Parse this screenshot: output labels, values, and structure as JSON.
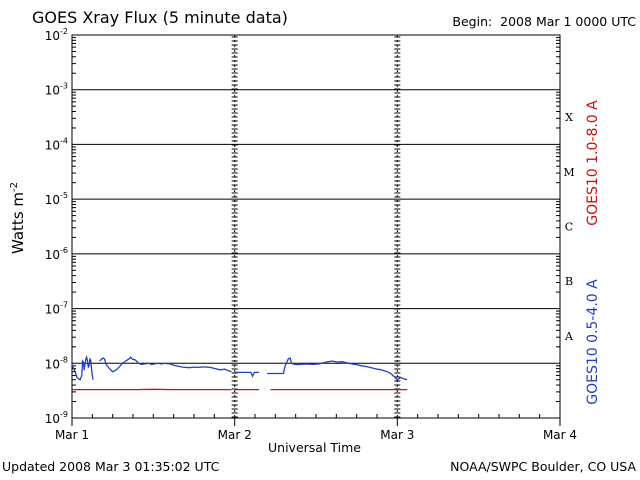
{
  "header": {
    "title": "GOES Xray Flux (5 minute data)",
    "begin_label": "Begin:",
    "begin_value": "2008 Mar 1 0000 UTC"
  },
  "footer": {
    "updated": "Updated 2008 Mar  3 01:35:02 UTC",
    "credit": "NOAA/SWPC Boulder, CO USA"
  },
  "chart_data": {
    "type": "line",
    "title": "GOES Xray Flux (5 minute data)",
    "xlabel": "Universal Time",
    "ylabel_base": "Watts m",
    "ylabel_exp": "-2",
    "y_scale": "log",
    "ylim": [
      1e-09,
      0.01
    ],
    "y_ticks": [
      {
        "base": "10",
        "exp": "-9",
        "value": 1e-09
      },
      {
        "base": "10",
        "exp": "-8",
        "value": 1e-08
      },
      {
        "base": "10",
        "exp": "-7",
        "value": 1e-07
      },
      {
        "base": "10",
        "exp": "-6",
        "value": 1e-06
      },
      {
        "base": "10",
        "exp": "-5",
        "value": 1e-05
      },
      {
        "base": "10",
        "exp": "-4",
        "value": 0.0001
      },
      {
        "base": "10",
        "exp": "-3",
        "value": 0.001
      },
      {
        "base": "10",
        "exp": "-2",
        "value": 0.01
      }
    ],
    "xlim": [
      0,
      3
    ],
    "x_unit": "days since 2008 Mar 1 0000 UTC",
    "x_ticks": [
      {
        "label": "Mar 1",
        "value": 0
      },
      {
        "label": "Mar 2",
        "value": 1
      },
      {
        "label": "Mar 3",
        "value": 2
      },
      {
        "label": "Mar 4",
        "value": 3
      }
    ],
    "flare_classes": [
      {
        "label": "A",
        "value": 3.16e-08
      },
      {
        "label": "B",
        "value": 3.16e-07
      },
      {
        "label": "C",
        "value": 3.16e-06
      },
      {
        "label": "M",
        "value": 3.16e-05
      },
      {
        "label": "X",
        "value": 0.000316
      }
    ],
    "horizontal_grid": [
      1e-08,
      1e-07,
      1e-06,
      1e-05,
      0.0001,
      0.001
    ],
    "series": [
      {
        "name": "GOES10 1.0-8.0 A",
        "color": "#d01010",
        "segments": [
          [
            [
              0.0,
              3.3e-09
            ],
            [
              0.12,
              3.3e-09
            ]
          ],
          [
            [
              0.12,
              3.3e-09
            ],
            [
              0.4,
              3.3e-09
            ],
            [
              0.5,
              3.35e-09
            ],
            [
              0.6,
              3.3e-09
            ],
            [
              0.98,
              3.3e-09
            ]
          ],
          [
            [
              1.0,
              3.3e-09
            ],
            [
              1.15,
              3.3e-09
            ]
          ],
          [
            [
              1.22,
              3.3e-09
            ],
            [
              1.6,
              3.3e-09
            ],
            [
              1.8,
              3.3e-09
            ],
            [
              2.06,
              3.3e-09
            ]
          ]
        ]
      },
      {
        "name": "GOES10 0.5-4.0 A",
        "color": "#2040c0",
        "segments": [
          [
            [
              0.0,
              9.5e-09
            ],
            [
              0.01,
              8e-09
            ],
            [
              0.02,
              7e-09
            ],
            [
              0.03,
              5.5e-09
            ],
            [
              0.04,
              5.2e-09
            ],
            [
              0.05,
              5e-09
            ],
            [
              0.06,
              6e-09
            ],
            [
              0.065,
              1.1e-08
            ],
            [
              0.07,
              1.05e-08
            ],
            [
              0.075,
              7.5e-09
            ],
            [
              0.08,
              9.5e-09
            ],
            [
              0.085,
              1.2e-08
            ],
            [
              0.09,
              1.3e-08
            ],
            [
              0.095,
              1.1e-08
            ],
            [
              0.1,
              8.5e-09
            ],
            [
              0.105,
              9e-09
            ],
            [
              0.11,
              1.2e-08
            ],
            [
              0.115,
              1.15e-08
            ],
            [
              0.12,
              8e-09
            ],
            [
              0.125,
              6e-09
            ],
            [
              0.13,
              5e-09
            ]
          ],
          [
            [
              0.17,
              1.1e-08
            ],
            [
              0.19,
              1.25e-08
            ],
            [
              0.2,
              1.2e-08
            ],
            [
              0.21,
              9.5e-09
            ],
            [
              0.23,
              8e-09
            ],
            [
              0.25,
              7e-09
            ],
            [
              0.27,
              7.5e-09
            ],
            [
              0.29,
              8.5e-09
            ],
            [
              0.31,
              1e-08
            ],
            [
              0.33,
              1.1e-08
            ],
            [
              0.35,
              1.2e-08
            ],
            [
              0.36,
              1.3e-08
            ],
            [
              0.37,
              1.2e-08
            ],
            [
              0.39,
              1.15e-08
            ],
            [
              0.41,
              1e-08
            ],
            [
              0.43,
              9.5e-09
            ],
            [
              0.45,
              9.8e-09
            ],
            [
              0.47,
              1e-08
            ],
            [
              0.49,
              9.5e-09
            ],
            [
              0.51,
              9.8e-09
            ],
            [
              0.53,
              1e-08
            ],
            [
              0.55,
              9.7e-09
            ],
            [
              0.57,
              1e-08
            ],
            [
              0.6,
              9.8e-09
            ],
            [
              0.62,
              9.3e-09
            ],
            [
              0.64,
              9e-09
            ],
            [
              0.68,
              8.5e-09
            ],
            [
              0.72,
              8.3e-09
            ],
            [
              0.75,
              8.5e-09
            ],
            [
              0.78,
              8.4e-09
            ],
            [
              0.81,
              8.6e-09
            ],
            [
              0.85,
              8.4e-09
            ],
            [
              0.88,
              8e-09
            ],
            [
              0.91,
              7.6e-09
            ],
            [
              0.94,
              7.8e-09
            ],
            [
              0.96,
              7.3e-09
            ],
            [
              0.98,
              7e-09
            ]
          ],
          [
            [
              1.0,
              6.8e-09
            ],
            [
              1.1,
              6.8e-09
            ],
            [
              1.11,
              5.8e-09
            ],
            [
              1.12,
              6.8e-09
            ],
            [
              1.15,
              6.8e-09
            ]
          ],
          [
            [
              1.2,
              6.5e-09
            ],
            [
              1.3,
              6.5e-09
            ],
            [
              1.31,
              9e-09
            ],
            [
              1.33,
              1.2e-08
            ],
            [
              1.34,
              1.25e-08
            ],
            [
              1.35,
              1e-08
            ],
            [
              1.37,
              9.5e-09
            ],
            [
              1.4,
              9.5e-09
            ],
            [
              1.44,
              9.7e-09
            ],
            [
              1.48,
              9.6e-09
            ],
            [
              1.52,
              9.8e-09
            ],
            [
              1.56,
              1.05e-08
            ],
            [
              1.6,
              1.1e-08
            ],
            [
              1.63,
              1.05e-08
            ],
            [
              1.66,
              1.07e-08
            ],
            [
              1.7,
              1e-08
            ],
            [
              1.74,
              9.6e-09
            ],
            [
              1.78,
              9e-09
            ],
            [
              1.82,
              8.6e-09
            ],
            [
              1.86,
              8e-09
            ],
            [
              1.9,
              7.6e-09
            ],
            [
              1.94,
              7e-09
            ],
            [
              1.96,
              6.5e-09
            ],
            [
              1.98,
              5.7e-09
            ],
            [
              2.0,
              5e-09
            ],
            [
              2.02,
              5.5e-09
            ],
            [
              2.04,
              5.2e-09
            ],
            [
              2.06,
              5e-09
            ]
          ]
        ]
      }
    ],
    "grid": true,
    "legend": "right side, rotated"
  }
}
